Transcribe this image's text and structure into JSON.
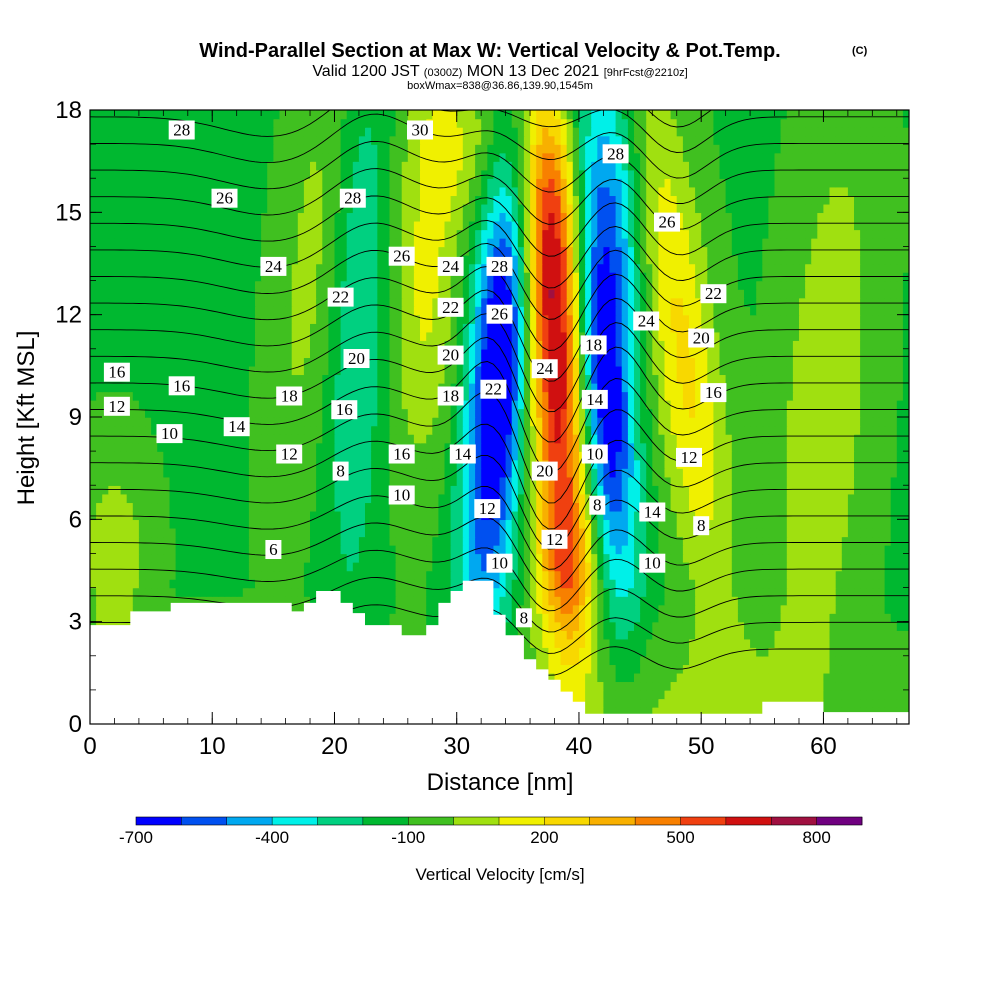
{
  "chart_data": {
    "type": "heatmap",
    "title": "Wind-Parallel Section at Max W: Vertical Velocity & Pot.Temp.",
    "title_mark": "(C)",
    "subtitle_prefix": "Valid 1200 JST",
    "subtitle_utc": "(0300Z)",
    "subtitle_date": "MON 13 Dec 2021",
    "subtitle_fcst": "[9hrFcst@2210z]",
    "subtitle2": "boxWmax=838@36.86,139.90,1545m",
    "xlabel": "Distance [nm]",
    "ylabel": "Height [Kft MSL]",
    "xlim": [
      0,
      67
    ],
    "ylim": [
      0,
      18
    ],
    "x_ticks": [
      0,
      10,
      20,
      30,
      40,
      50,
      60
    ],
    "x_tick_labels": [
      "0",
      "10",
      "20",
      "30",
      "40",
      "50",
      "60"
    ],
    "y_ticks": [
      0,
      3,
      6,
      9,
      12,
      15,
      18
    ],
    "y_tick_labels": [
      "0",
      "3",
      "6",
      "9",
      "12",
      "15",
      "18"
    ],
    "colorbar": {
      "label": "Vertical Velocity [cm/s]",
      "levels": [
        -700,
        -600,
        -500,
        -400,
        -300,
        -200,
        -100,
        0,
        100,
        200,
        300,
        400,
        500,
        600,
        700,
        800,
        900
      ],
      "tick_values": [
        -700,
        -400,
        -100,
        200,
        500,
        800
      ],
      "tick_labels": [
        "-700",
        "-400",
        "-100",
        "200",
        "500",
        "800"
      ],
      "colors": [
        "#0000ff",
        "#0050f0",
        "#00a8f0",
        "#00f0e8",
        "#00d080",
        "#00b830",
        "#40c020",
        "#a0e010",
        "#f0f000",
        "#f8d800",
        "#f8b000",
        "#f88000",
        "#f04010",
        "#d01010",
        "#a01040",
        "#700080"
      ]
    },
    "terrain": [
      [
        0,
        2.9
      ],
      [
        3.3,
        2.9
      ],
      [
        3.3,
        3.3
      ],
      [
        6.6,
        3.3
      ],
      [
        6.6,
        3.55
      ],
      [
        16.5,
        3.55
      ],
      [
        16.5,
        3.3
      ],
      [
        17.5,
        3.3
      ],
      [
        17.5,
        3.55
      ],
      [
        18.5,
        3.55
      ],
      [
        18.5,
        3.9
      ],
      [
        20.5,
        3.9
      ],
      [
        20.5,
        3.55
      ],
      [
        21.5,
        3.55
      ],
      [
        21.5,
        3.25
      ],
      [
        22.5,
        3.25
      ],
      [
        22.5,
        2.9
      ],
      [
        25.5,
        2.9
      ],
      [
        25.5,
        2.6
      ],
      [
        27.5,
        2.6
      ],
      [
        27.5,
        2.9
      ],
      [
        28.5,
        2.9
      ],
      [
        28.5,
        3.55
      ],
      [
        29.5,
        3.55
      ],
      [
        29.5,
        3.9
      ],
      [
        30.5,
        3.9
      ],
      [
        30.5,
        4.2
      ],
      [
        33,
        4.2
      ],
      [
        33,
        3.2
      ],
      [
        34,
        3.2
      ],
      [
        34,
        2.6
      ],
      [
        35.5,
        2.6
      ],
      [
        35.5,
        1.9
      ],
      [
        36.5,
        1.9
      ],
      [
        36.5,
        1.6
      ],
      [
        37.5,
        1.6
      ],
      [
        37.5,
        1.3
      ],
      [
        38.5,
        1.3
      ],
      [
        38.5,
        0.95
      ],
      [
        39.5,
        0.95
      ],
      [
        39.5,
        0.65
      ],
      [
        40.5,
        0.65
      ],
      [
        40.5,
        0.3
      ],
      [
        55,
        0.3
      ],
      [
        55,
        0.65
      ],
      [
        60,
        0.65
      ],
      [
        60,
        0.35
      ],
      [
        67,
        0.35
      ]
    ],
    "w_max_cm_s": 838,
    "theta_label_unit": "C",
    "theta_labels": [
      {
        "text": "28",
        "x": 7.5,
        "y": 17.4
      },
      {
        "text": "26",
        "x": 11,
        "y": 15.4
      },
      {
        "text": "24",
        "x": 15,
        "y": 13.4
      },
      {
        "text": "16",
        "x": 2.2,
        "y": 10.3
      },
      {
        "text": "12",
        "x": 2.2,
        "y": 9.3
      },
      {
        "text": "16",
        "x": 7.5,
        "y": 9.9
      },
      {
        "text": "10",
        "x": 6.5,
        "y": 8.5
      },
      {
        "text": "14",
        "x": 12,
        "y": 8.7
      },
      {
        "text": "18",
        "x": 16.3,
        "y": 9.6
      },
      {
        "text": "12",
        "x": 16.3,
        "y": 7.9
      },
      {
        "text": "28",
        "x": 21.5,
        "y": 15.4
      },
      {
        "text": "22",
        "x": 20.5,
        "y": 12.5
      },
      {
        "text": "20",
        "x": 21.8,
        "y": 10.7
      },
      {
        "text": "16",
        "x": 20.8,
        "y": 9.2
      },
      {
        "text": "8",
        "x": 20.5,
        "y": 7.4
      },
      {
        "text": "26",
        "x": 25.5,
        "y": 13.7
      },
      {
        "text": "30",
        "x": 27,
        "y": 17.4
      },
      {
        "text": "24",
        "x": 29.5,
        "y": 13.4
      },
      {
        "text": "22",
        "x": 29.5,
        "y": 12.2
      },
      {
        "text": "20",
        "x": 29.5,
        "y": 10.8
      },
      {
        "text": "18",
        "x": 29.5,
        "y": 9.6
      },
      {
        "text": "16",
        "x": 25.5,
        "y": 7.9
      },
      {
        "text": "14",
        "x": 30.5,
        "y": 7.9
      },
      {
        "text": "10",
        "x": 25.5,
        "y": 6.7
      },
      {
        "text": "28",
        "x": 33.5,
        "y": 13.4
      },
      {
        "text": "26",
        "x": 33.5,
        "y": 12.0
      },
      {
        "text": "22",
        "x": 33,
        "y": 9.8
      },
      {
        "text": "12",
        "x": 32.5,
        "y": 6.3
      },
      {
        "text": "10",
        "x": 33.5,
        "y": 4.7
      },
      {
        "text": "8",
        "x": 35.5,
        "y": 3.1
      },
      {
        "text": "24",
        "x": 37.2,
        "y": 10.4
      },
      {
        "text": "20",
        "x": 37.2,
        "y": 7.4
      },
      {
        "text": "12",
        "x": 38,
        "y": 5.4
      },
      {
        "text": "18",
        "x": 41.2,
        "y": 11.1
      },
      {
        "text": "14",
        "x": 41.3,
        "y": 9.5
      },
      {
        "text": "10",
        "x": 41.3,
        "y": 7.9
      },
      {
        "text": "8",
        "x": 41.5,
        "y": 6.4
      },
      {
        "text": "28",
        "x": 43,
        "y": 16.7
      },
      {
        "text": "24",
        "x": 45.5,
        "y": 11.8
      },
      {
        "text": "26",
        "x": 47.2,
        "y": 14.7
      },
      {
        "text": "22",
        "x": 51,
        "y": 12.6
      },
      {
        "text": "20",
        "x": 50,
        "y": 11.3
      },
      {
        "text": "16",
        "x": 51,
        "y": 9.7
      },
      {
        "text": "12",
        "x": 49,
        "y": 7.8
      },
      {
        "text": "14",
        "x": 46,
        "y": 6.2
      },
      {
        "text": "10",
        "x": 46,
        "y": 4.7
      },
      {
        "text": "8",
        "x": 50,
        "y": 5.8
      },
      {
        "text": "6",
        "x": 15,
        "y": 5.1
      }
    ]
  }
}
